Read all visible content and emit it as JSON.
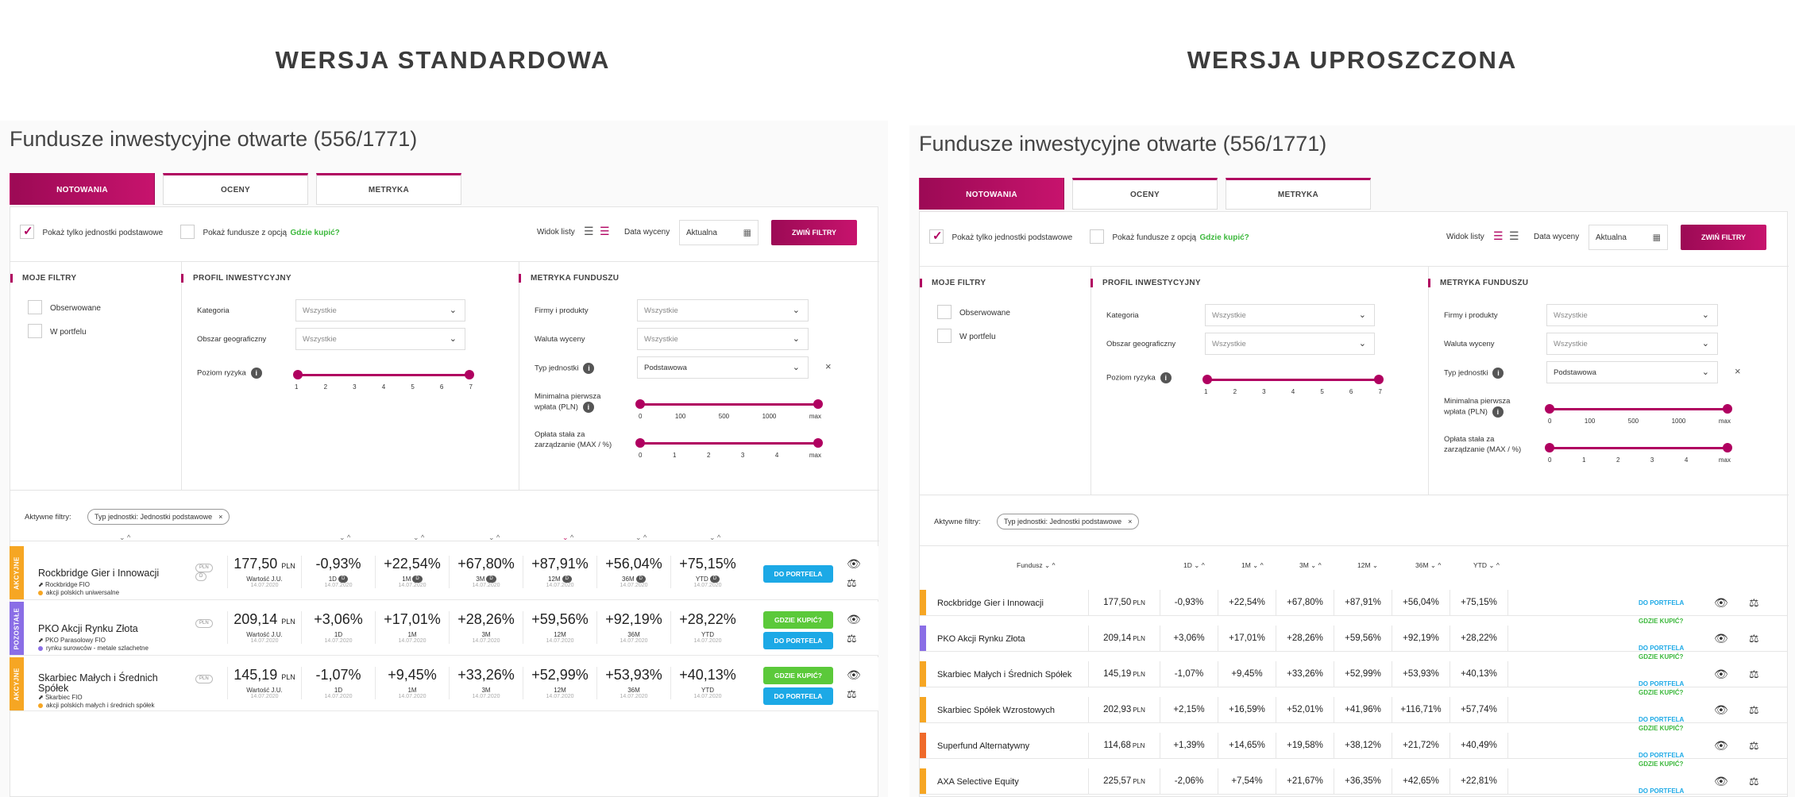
{
  "headers": {
    "left": "WERSJA STANDARDOWA",
    "right": "WERSJA UPROSZCZONA"
  },
  "title": "Fundusze inwestycyjne otwarte (556/1771)",
  "tabs": [
    "NOTOWANIA",
    "OCENY",
    "METRYKA"
  ],
  "toolbar": {
    "show_base_units": "Pokaż tylko jednostki podstawowe",
    "show_buy_option": "Pokaż fundusze z opcją",
    "where_buy": "Gdzie kupić?",
    "list_view": "Widok listy",
    "valuation_date": "Data wyceny",
    "date_value": "Aktualna",
    "collapse_filters": "ZWIŃ FILTRY"
  },
  "filters": {
    "my_filters": "MOJE FILTRY",
    "observed": "Obserwowane",
    "in_portfolio": "W portfelu",
    "profile": "PROFIL INWESTYCYJNY",
    "category": "Kategoria",
    "category_value": "Wszystkie",
    "geo": "Obszar geograficzny",
    "geo_value": "Wszystkie",
    "risk": "Poziom ryzyka",
    "risk_ticks": [
      "1",
      "2",
      "3",
      "4",
      "5",
      "6",
      "7"
    ],
    "metric": "METRYKA FUNDUSZU",
    "firms": "Firmy i produkty",
    "firms_value": "Wszystkie",
    "currency": "Waluta wyceny",
    "currency_value": "Wszystkie",
    "unit_type": "Typ jednostki",
    "unit_type_value": "Podstawowa",
    "min_payment_1": "Minimalna pierwsza",
    "min_payment_2": "wpłata (PLN)",
    "min_ticks": [
      "0",
      "100",
      "500",
      "1000",
      "max"
    ],
    "fee_1": "Opłata stała za",
    "fee_2": "zarządzanie (MAX / %)",
    "fee_ticks": [
      "0",
      "1",
      "2",
      "3",
      "4",
      "max"
    ]
  },
  "active_filters_label": "Aktywne filtry:",
  "active_chip": "Typ jednostki: Jednostki podstawowe",
  "std_funds": [
    {
      "name": "Rockbridge Gier i Innowacji",
      "firm": "Rockbridge FIO",
      "cat": "akcji polskich uniwersalne",
      "bar": "AKCYJNE",
      "color": "#f6a623",
      "value": "177,50",
      "cur": "PLN",
      "val_label": "Wartość J.U.",
      "date": "14.07.2020",
      "r": [
        "-0,93%",
        "+22,54%",
        "+67,80%",
        "+87,91%",
        "+56,04%",
        "+75,15%"
      ],
      "buy": false,
      "pills": [
        "PLN",
        "D"
      ]
    },
    {
      "name": "PKO Akcji Rynku Złota",
      "firm": "PKO Parasolowy FIO",
      "cat": "rynku surowców - metale szlachetne",
      "bar": "POZOSTAŁE",
      "color": "#8a6ee6",
      "value": "209,14",
      "cur": "PLN",
      "val_label": "Wartość J.U.",
      "date": "14.07.2020",
      "r": [
        "+3,06%",
        "+17,01%",
        "+28,26%",
        "+59,56%",
        "+92,19%",
        "+28,22%"
      ],
      "buy": true,
      "pills": [
        "PLN"
      ]
    },
    {
      "name": "Skarbiec Małych i Średnich Spółek",
      "firm": "Skarbiec FIO",
      "cat": "akcji polskich małych i średnich spółek",
      "bar": "AKCYJNE",
      "color": "#f6a623",
      "value": "145,19",
      "cur": "PLN",
      "val_label": "Wartość J.U.",
      "date": "14.07.2020",
      "r": [
        "-1,07%",
        "+9,45%",
        "+33,26%",
        "+52,99%",
        "+53,93%",
        "+40,13%"
      ],
      "buy": true,
      "pills": [
        "PLN"
      ]
    }
  ],
  "period_labels": [
    "1D",
    "1M",
    "3M",
    "12M",
    "36M",
    "YTD"
  ],
  "period_dates": "14.07.2020",
  "btn_portfolio": "DO PORTFELA",
  "btn_where_buy": "GDZIE KUPIĆ?",
  "simple_header": {
    "fund": "Fundusz",
    "cols": [
      "1D",
      "1M",
      "3M",
      "12M",
      "36M",
      "YTD"
    ]
  },
  "simple_funds": [
    {
      "name": "Rockbridge Gier i Innowacji",
      "color": "#f6a623",
      "value": "177,50",
      "r": [
        "-0,93%",
        "+22,54%",
        "+67,80%",
        "+87,91%",
        "+56,04%",
        "+75,15%"
      ],
      "buy": false
    },
    {
      "name": "PKO Akcji Rynku Złota",
      "color": "#8a6ee6",
      "value": "209,14",
      "r": [
        "+3,06%",
        "+17,01%",
        "+28,26%",
        "+59,56%",
        "+92,19%",
        "+28,22%"
      ],
      "buy": true
    },
    {
      "name": "Skarbiec Małych i Średnich Spółek",
      "color": "#f6a623",
      "value": "145,19",
      "r": [
        "-1,07%",
        "+9,45%",
        "+33,26%",
        "+52,99%",
        "+53,93%",
        "+40,13%"
      ],
      "buy": true
    },
    {
      "name": "Skarbiec Spółek Wzrostowych",
      "color": "#f6a623",
      "value": "202,93",
      "r": [
        "+2,15%",
        "+16,59%",
        "+52,01%",
        "+41,96%",
        "+116,71%",
        "+57,74%"
      ],
      "buy": true
    },
    {
      "name": "Superfund Alternatywny",
      "color": "#ef6a2a",
      "value": "114,68",
      "r": [
        "+1,39%",
        "+14,65%",
        "+19,58%",
        "+38,12%",
        "+21,72%",
        "+40,49%"
      ],
      "buy": true
    },
    {
      "name": "AXA Selective Equity",
      "color": "#f6a623",
      "value": "225,57",
      "r": [
        "-2,06%",
        "+7,54%",
        "+21,67%",
        "+36,35%",
        "+42,65%",
        "+22,81%"
      ],
      "buy": true
    }
  ],
  "currency": "PLN",
  "colors": {
    "brand": "#b00060",
    "blue": "#1ca9e6",
    "green": "#5bc93a"
  }
}
